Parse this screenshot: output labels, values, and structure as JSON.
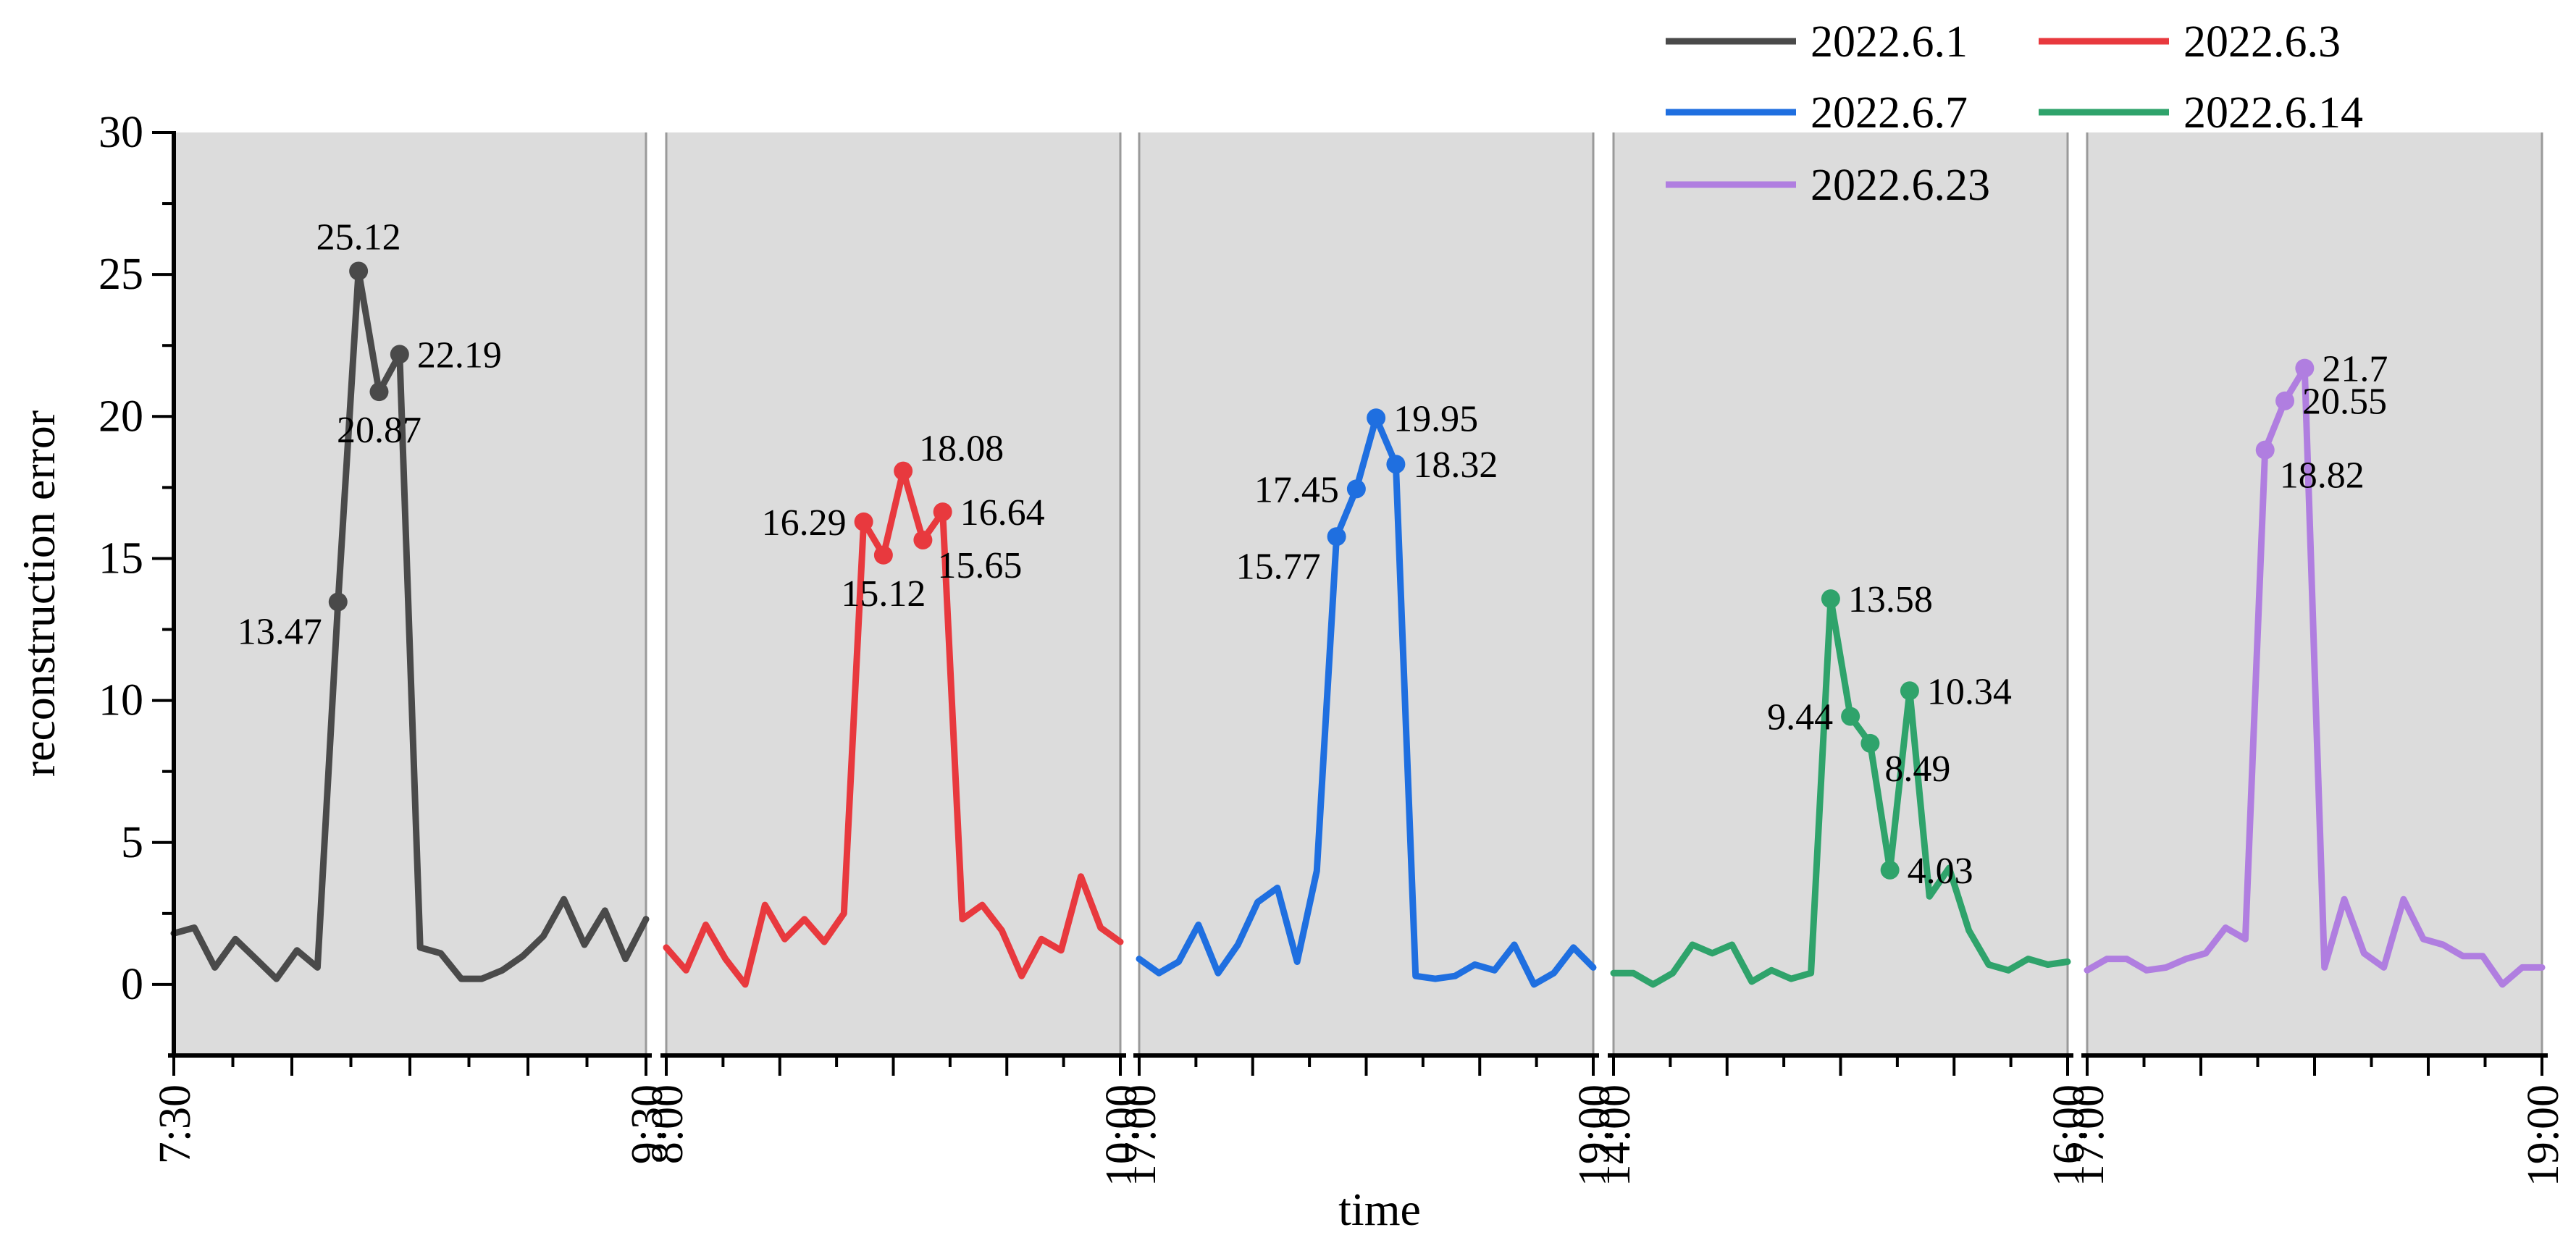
{
  "chart_data": {
    "type": "line",
    "xlabel": "time",
    "ylabel": "reconstruction error",
    "ylim": [
      -2.5,
      30
    ],
    "yticks": [
      0,
      5,
      10,
      15,
      20,
      25,
      30
    ],
    "background": "#dcdcdc",
    "legend": {
      "placement": "top-right",
      "columns": 2
    },
    "panels": [
      {
        "series": "2022.6.1",
        "color": "#4a4a4a",
        "start_label": "7:30",
        "end_label": "9:30",
        "values": [
          1.8,
          2.0,
          0.6,
          1.6,
          0.9,
          0.2,
          1.2,
          0.6,
          13.47,
          25.12,
          20.87,
          22.19,
          1.3,
          1.1,
          0.2,
          0.2,
          0.5,
          1.0,
          1.7,
          3.0,
          1.4,
          2.6,
          0.9,
          2.3
        ],
        "markers": [
          {
            "i": 8,
            "label": "13.47",
            "pos": "left-below"
          },
          {
            "i": 9,
            "label": "25.12",
            "pos": "above"
          },
          {
            "i": 10,
            "label": "20.87",
            "pos": "below"
          },
          {
            "i": 11,
            "label": "22.19",
            "pos": "right"
          }
        ]
      },
      {
        "series": "2022.6.3",
        "color": "#e8393e",
        "start_label": "8:00",
        "end_label": "10:00",
        "values": [
          1.3,
          0.5,
          2.1,
          0.9,
          0.0,
          2.8,
          1.6,
          2.3,
          1.5,
          2.5,
          16.29,
          15.12,
          18.08,
          15.65,
          16.64,
          2.3,
          2.8,
          1.9,
          0.3,
          1.6,
          1.2,
          3.8,
          2.0,
          1.5
        ],
        "markers": [
          {
            "i": 10,
            "label": "16.29",
            "pos": "left"
          },
          {
            "i": 11,
            "label": "15.12",
            "pos": "below"
          },
          {
            "i": 12,
            "label": "18.08",
            "pos": "right-up"
          },
          {
            "i": 13,
            "label": "15.65",
            "pos": "right-below"
          },
          {
            "i": 14,
            "label": "16.64",
            "pos": "right"
          }
        ]
      },
      {
        "series": "2022.6.7",
        "color": "#1f6fe0",
        "start_label": "17:00",
        "end_label": "19:00",
        "values": [
          0.9,
          0.4,
          0.8,
          2.1,
          0.4,
          1.4,
          2.9,
          3.4,
          0.8,
          4.0,
          15.77,
          17.45,
          19.95,
          18.32,
          0.3,
          0.2,
          0.3,
          0.7,
          0.5,
          1.4,
          0.0,
          0.4,
          1.3,
          0.6
        ],
        "markers": [
          {
            "i": 10,
            "label": "15.77",
            "pos": "left-below"
          },
          {
            "i": 11,
            "label": "17.45",
            "pos": "left"
          },
          {
            "i": 12,
            "label": "19.95",
            "pos": "right"
          },
          {
            "i": 13,
            "label": "18.32",
            "pos": "right"
          }
        ]
      },
      {
        "series": "2022.6.14",
        "color": "#2fa36b",
        "start_label": "14:00",
        "end_label": "16:00",
        "values": [
          0.4,
          0.4,
          0.0,
          0.4,
          1.4,
          1.1,
          1.4,
          0.1,
          0.5,
          0.2,
          0.4,
          13.58,
          9.44,
          8.49,
          4.03,
          10.34,
          3.1,
          4.1,
          1.9,
          0.7,
          0.5,
          0.9,
          0.7,
          0.8
        ],
        "markers": [
          {
            "i": 11,
            "label": "13.58",
            "pos": "right"
          },
          {
            "i": 12,
            "label": "9.44",
            "pos": "left"
          },
          {
            "i": 13,
            "label": "8.49",
            "pos": "right-below"
          },
          {
            "i": 14,
            "label": "4.03",
            "pos": "right"
          },
          {
            "i": 15,
            "label": "10.34",
            "pos": "right"
          }
        ]
      },
      {
        "series": "2022.6.23",
        "color": "#b07ee0",
        "start_label": "17:00",
        "end_label": "19:00",
        "values": [
          0.5,
          0.9,
          0.9,
          0.5,
          0.6,
          0.9,
          1.1,
          2.0,
          1.6,
          18.82,
          20.55,
          21.7,
          0.6,
          3.0,
          1.1,
          0.6,
          3.0,
          1.6,
          1.4,
          1.0,
          1.0,
          0.0,
          0.6,
          0.6
        ],
        "markers": [
          {
            "i": 9,
            "label": "18.82",
            "pos": "right-below"
          },
          {
            "i": 10,
            "label": "20.55",
            "pos": "right"
          },
          {
            "i": 11,
            "label": "21.7",
            "pos": "right"
          }
        ]
      }
    ]
  }
}
